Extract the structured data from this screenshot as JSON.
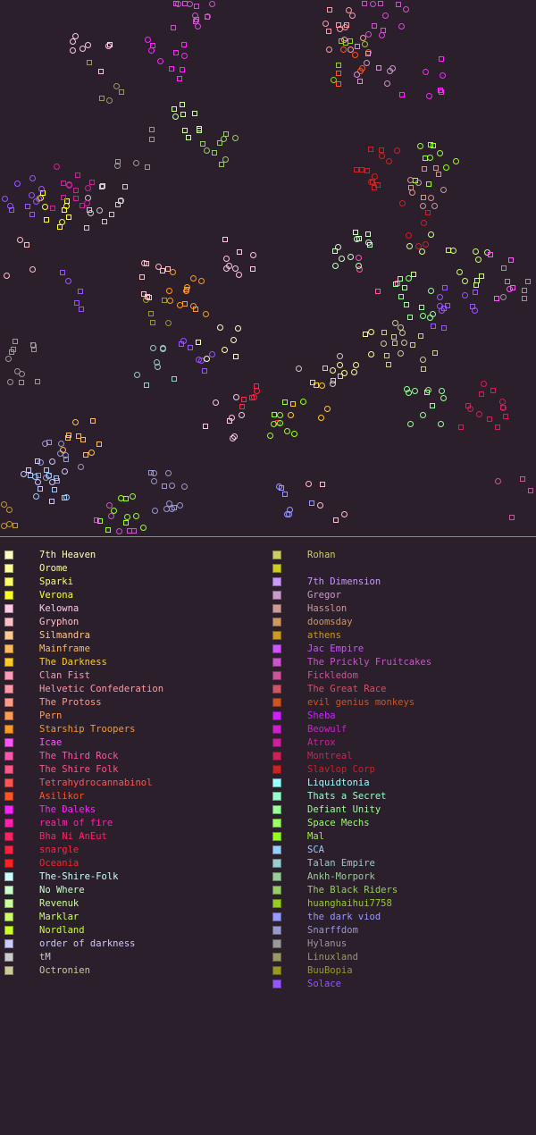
{
  "colors": {
    "background": "#2a1f2b",
    "divider": "#8a8a8a"
  },
  "map": {
    "markers": {
      "square": "planet-square",
      "circle": "planet-circle"
    }
  },
  "legend": {
    "left": [
      {
        "name": "7th Heaven",
        "color": "#ffffc4"
      },
      {
        "name": "Orome",
        "color": "#ffff99"
      },
      {
        "name": "Sparki",
        "color": "#ffff66"
      },
      {
        "name": "Verona",
        "color": "#ffff22"
      },
      {
        "name": "Kelowna",
        "color": "#ffc8e8"
      },
      {
        "name": "Gryphon",
        "color": "#ffc0c8"
      },
      {
        "name": "Silmandra",
        "color": "#ffc890"
      },
      {
        "name": "Mainframe",
        "color": "#ffbb55"
      },
      {
        "name": "The Darkness",
        "color": "#ffcc22"
      },
      {
        "name": "Clan Fist",
        "color": "#ff99bb"
      },
      {
        "name": "Helvetic Confederation",
        "color": "#ff9aa8"
      },
      {
        "name": "The Protoss",
        "color": "#ff9a88"
      },
      {
        "name": "Pern",
        "color": "#ff9a55"
      },
      {
        "name": "Starship Troopers",
        "color": "#ff9922"
      },
      {
        "name": "Icae",
        "color": "#ff55ff"
      },
      {
        "name": "The Third Rock",
        "color": "#ff55aa"
      },
      {
        "name": "The Shire Folk",
        "color": "#ff5588"
      },
      {
        "name": "Tetrahydrocannabinol",
        "color": "#ff5555"
      },
      {
        "name": "Asilikor",
        "color": "#ff5522"
      },
      {
        "name": "The Daleks",
        "color": "#ff22ff"
      },
      {
        "name": "realm of fire",
        "color": "#ff22aa"
      },
      {
        "name": "Bha Ni AnEut",
        "color": "#ff2266"
      },
      {
        "name": "snargle",
        "color": "#ff2244"
      },
      {
        "name": "Oceania",
        "color": "#ff2222"
      },
      {
        "name": "The-Shire-Folk",
        "color": "#ccffff"
      },
      {
        "name": "No Where",
        "color": "#ccffcc"
      },
      {
        "name": "Revenuk",
        "color": "#ccff99"
      },
      {
        "name": "Marklar",
        "color": "#ccff66"
      },
      {
        "name": "Nordland",
        "color": "#ccff22"
      },
      {
        "name": "order of darkness",
        "color": "#ccccff"
      },
      {
        "name": "tM",
        "color": "#cccccc"
      },
      {
        "name": "Octronien",
        "color": "#cccc99"
      }
    ],
    "right": [
      {
        "name": "Rohan",
        "color": "#cccc66"
      },
      {
        "name": "",
        "color": "#cccc22"
      },
      {
        "name": "7th Dimension",
        "color": "#cc99ff"
      },
      {
        "name": "Gregor",
        "color": "#cc99cc"
      },
      {
        "name": "Hasslon",
        "color": "#cc9999"
      },
      {
        "name": "doomsday",
        "color": "#cc9966"
      },
      {
        "name": "athens",
        "color": "#cc9922"
      },
      {
        "name": "Jac Empire",
        "color": "#cc55ff"
      },
      {
        "name": "The Prickly Fruitcakes",
        "color": "#cc55cc"
      },
      {
        "name": "Fickledom",
        "color": "#cc5599"
      },
      {
        "name": "The Great Race",
        "color": "#cc5566"
      },
      {
        "name": "evil genius monkeys",
        "color": "#cc5522"
      },
      {
        "name": "Sheba",
        "color": "#cc22ff"
      },
      {
        "name": "Beowulf",
        "color": "#cc22cc"
      },
      {
        "name": "Atrox",
        "color": "#cc2299"
      },
      {
        "name": "Montreal",
        "color": "#cc2255"
      },
      {
        "name": "Slavlop Corp",
        "color": "#cc2222"
      },
      {
        "name": "Liquidtonia",
        "color": "#99ffff"
      },
      {
        "name": "Thats a Secret",
        "color": "#99ffcc"
      },
      {
        "name": "Defiant Unity",
        "color": "#99ff99"
      },
      {
        "name": "Space Mechs",
        "color": "#99ff66"
      },
      {
        "name": "Mal",
        "color": "#99ff22"
      },
      {
        "name": "SCA",
        "color": "#99ccff"
      },
      {
        "name": "Talan Empire",
        "color": "#99cccc"
      },
      {
        "name": "Ankh-Morpork",
        "color": "#99cc99"
      },
      {
        "name": "The Black Riders",
        "color": "#99cc66"
      },
      {
        "name": "huanghaihui7758",
        "color": "#99cc22"
      },
      {
        "name": "the dark viod",
        "color": "#9999ff"
      },
      {
        "name": "Snarffdom",
        "color": "#9999cc"
      },
      {
        "name": "Hylanus",
        "color": "#999999"
      },
      {
        "name": "Linuxland",
        "color": "#999966"
      },
      {
        "name": "BuuBopia",
        "color": "#999922"
      },
      {
        "name": "Solace",
        "color": "#9955ff"
      }
    ]
  }
}
